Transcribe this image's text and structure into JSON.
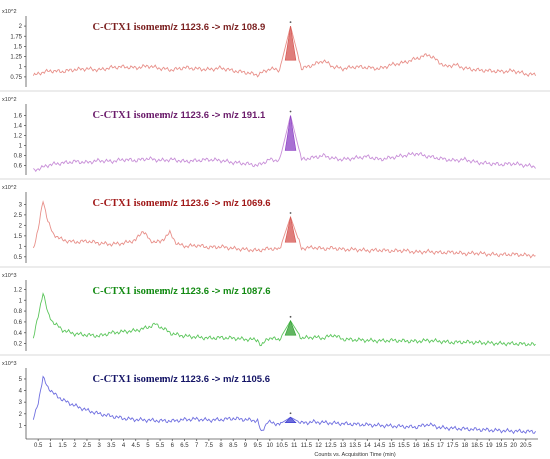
{
  "chart_data": {
    "type": "line",
    "xlabel": "Counts vs. Acquisition Time (min)",
    "x_ticks": [
      "0.5",
      "1",
      "1.5",
      "2",
      "2.5",
      "3",
      "3.5",
      "4",
      "4.5",
      "5",
      "5.5",
      "6",
      "6.5",
      "7",
      "7.5",
      "8",
      "8.5",
      "9",
      "9.5",
      "10",
      "10.5",
      "11",
      "11.5",
      "12",
      "12.5",
      "13",
      "13.5",
      "14",
      "14.5",
      "15",
      "15.5",
      "16",
      "16.5",
      "17",
      "17.5",
      "18",
      "18.5",
      "19",
      "19.5",
      "20",
      "20.5"
    ],
    "xlim": [
      0.0,
      21.0
    ],
    "peak_time": 10.85,
    "panels": [
      {
        "isomer_label": "C-CTX1 isomer:",
        "transition": "m/z 1123.6 -> m/z 108.9",
        "scale": "x10^2",
        "label_color": "#7a1f1f",
        "line_color": "#e8908a",
        "fill_color": "#d4524d",
        "y_ticks": [
          "0.75",
          "1",
          "1.25",
          "1.5",
          "1.75",
          "2"
        ],
        "ylim": [
          0.55,
          2.15
        ],
        "points": [
          [
            0.3,
            0.78
          ],
          [
            0.6,
            0.85
          ],
          [
            1.0,
            0.9
          ],
          [
            1.5,
            0.88
          ],
          [
            2.0,
            0.93
          ],
          [
            2.5,
            0.95
          ],
          [
            3.0,
            0.92
          ],
          [
            3.5,
            0.98
          ],
          [
            4.0,
            1.0
          ],
          [
            4.5,
            0.97
          ],
          [
            5.0,
            1.02
          ],
          [
            5.5,
            0.96
          ],
          [
            6.0,
            0.92
          ],
          [
            6.5,
            0.98
          ],
          [
            7.0,
            0.95
          ],
          [
            7.5,
            0.93
          ],
          [
            8.0,
            0.97
          ],
          [
            8.5,
            0.9
          ],
          [
            9.0,
            0.86
          ],
          [
            9.5,
            0.8
          ],
          [
            10.0,
            0.95
          ],
          [
            10.4,
            0.92
          ],
          [
            10.85,
            2.0
          ],
          [
            11.3,
            0.95
          ],
          [
            11.8,
            1.05
          ],
          [
            12.2,
            1.15
          ],
          [
            12.6,
            1.0
          ],
          [
            13.0,
            0.95
          ],
          [
            13.5,
            1.0
          ],
          [
            14.0,
            0.98
          ],
          [
            14.5,
            0.95
          ],
          [
            15.0,
            1.05
          ],
          [
            15.5,
            1.1
          ],
          [
            16.0,
            1.2
          ],
          [
            16.5,
            1.3
          ],
          [
            16.8,
            1.18
          ],
          [
            17.2,
            1.0
          ],
          [
            17.6,
            1.05
          ],
          [
            18.0,
            0.96
          ],
          [
            18.5,
            0.92
          ],
          [
            19.0,
            0.9
          ],
          [
            19.5,
            0.88
          ],
          [
            20.0,
            0.9
          ],
          [
            20.5,
            0.82
          ],
          [
            20.9,
            0.8
          ]
        ]
      },
      {
        "isomer_label": "C-CTX1 isomer:",
        "transition": "m/z 1123.6 -> m/z 191.1",
        "scale": "x10^2",
        "label_color": "#6a1b6a",
        "line_color": "#c88fd8",
        "fill_color": "#8b3fc4",
        "y_ticks": [
          "0.6",
          "0.8",
          "1",
          "1.2",
          "1.4",
          "1.6"
        ],
        "ylim": [
          0.45,
          1.75
        ],
        "points": [
          [
            0.3,
            0.5
          ],
          [
            0.6,
            0.55
          ],
          [
            1.0,
            0.62
          ],
          [
            1.5,
            0.65
          ],
          [
            2.0,
            0.68
          ],
          [
            2.5,
            0.66
          ],
          [
            3.0,
            0.7
          ],
          [
            3.5,
            0.68
          ],
          [
            4.0,
            0.72
          ],
          [
            4.5,
            0.7
          ],
          [
            5.0,
            0.74
          ],
          [
            5.5,
            0.7
          ],
          [
            6.0,
            0.72
          ],
          [
            6.5,
            0.68
          ],
          [
            7.0,
            0.7
          ],
          [
            7.5,
            0.72
          ],
          [
            8.0,
            0.7
          ],
          [
            8.5,
            0.66
          ],
          [
            9.0,
            0.64
          ],
          [
            9.5,
            0.6
          ],
          [
            10.0,
            0.72
          ],
          [
            10.4,
            0.7
          ],
          [
            10.85,
            1.6
          ],
          [
            11.3,
            0.72
          ],
          [
            11.8,
            0.76
          ],
          [
            12.2,
            0.8
          ],
          [
            12.6,
            0.74
          ],
          [
            13.0,
            0.72
          ],
          [
            13.5,
            0.75
          ],
          [
            14.0,
            0.78
          ],
          [
            14.5,
            0.72
          ],
          [
            15.0,
            0.76
          ],
          [
            15.5,
            0.8
          ],
          [
            16.0,
            0.84
          ],
          [
            16.5,
            0.78
          ],
          [
            17.0,
            0.74
          ],
          [
            17.5,
            0.7
          ],
          [
            18.0,
            0.72
          ],
          [
            18.5,
            0.66
          ],
          [
            19.0,
            0.64
          ],
          [
            19.5,
            0.62
          ],
          [
            20.0,
            0.64
          ],
          [
            20.5,
            0.6
          ],
          [
            20.9,
            0.58
          ]
        ]
      },
      {
        "isomer_label": "C-CTX1 isomer:",
        "transition": "m/z 1123.6 -> m/z 1069.6",
        "scale": "x10^2",
        "label_color": "#a01818",
        "line_color": "#e8908a",
        "fill_color": "#d4524d",
        "y_ticks": [
          "0.5",
          "1",
          "1.5",
          "2",
          "2.5",
          "3"
        ],
        "ylim": [
          0.3,
          3.4
        ],
        "points": [
          [
            0.3,
            0.9
          ],
          [
            0.5,
            1.8
          ],
          [
            0.7,
            3.2
          ],
          [
            0.9,
            2.2
          ],
          [
            1.1,
            1.6
          ],
          [
            1.5,
            1.3
          ],
          [
            2.0,
            1.2
          ],
          [
            2.5,
            1.25
          ],
          [
            3.0,
            1.15
          ],
          [
            3.5,
            1.1
          ],
          [
            4.0,
            1.15
          ],
          [
            4.5,
            1.3
          ],
          [
            4.8,
            1.75
          ],
          [
            5.1,
            1.25
          ],
          [
            5.5,
            1.2
          ],
          [
            5.9,
            1.65
          ],
          [
            6.2,
            1.1
          ],
          [
            6.6,
            1.0
          ],
          [
            7.0,
            1.05
          ],
          [
            7.5,
            0.95
          ],
          [
            8.0,
            0.98
          ],
          [
            8.5,
            0.9
          ],
          [
            9.0,
            0.85
          ],
          [
            9.5,
            0.8
          ],
          [
            10.0,
            0.9
          ],
          [
            10.4,
            0.85
          ],
          [
            10.85,
            2.4
          ],
          [
            11.3,
            0.9
          ],
          [
            11.8,
            0.95
          ],
          [
            12.2,
            0.88
          ],
          [
            12.6,
            0.92
          ],
          [
            13.0,
            0.85
          ],
          [
            13.5,
            0.85
          ],
          [
            14.0,
            0.8
          ],
          [
            14.5,
            0.82
          ],
          [
            15.0,
            0.78
          ],
          [
            15.5,
            0.8
          ],
          [
            16.0,
            0.72
          ],
          [
            16.5,
            0.75
          ],
          [
            17.0,
            0.7
          ],
          [
            17.5,
            0.72
          ],
          [
            18.0,
            0.65
          ],
          [
            18.5,
            0.68
          ],
          [
            19.0,
            0.62
          ],
          [
            19.5,
            0.6
          ],
          [
            20.0,
            0.62
          ],
          [
            20.5,
            0.58
          ],
          [
            20.9,
            0.55
          ]
        ]
      },
      {
        "isomer_label": "C-CTX1 isomer:",
        "transition": "m/z 1123.6 -> m/z 1087.6",
        "scale": "x10^3",
        "label_color": "#128a12",
        "line_color": "#5cc65c",
        "fill_color": "#2e9e2e",
        "y_ticks": [
          "0.2",
          "0.4",
          "0.6",
          "0.8",
          "1",
          "1.2"
        ],
        "ylim": [
          0.1,
          1.3
        ],
        "points": [
          [
            0.3,
            0.3
          ],
          [
            0.5,
            0.7
          ],
          [
            0.7,
            1.15
          ],
          [
            0.9,
            0.75
          ],
          [
            1.1,
            0.6
          ],
          [
            1.5,
            0.45
          ],
          [
            2.0,
            0.38
          ],
          [
            2.5,
            0.36
          ],
          [
            3.0,
            0.34
          ],
          [
            3.5,
            0.4
          ],
          [
            4.0,
            0.42
          ],
          [
            4.5,
            0.44
          ],
          [
            5.0,
            0.5
          ],
          [
            5.3,
            0.56
          ],
          [
            5.7,
            0.46
          ],
          [
            6.0,
            0.38
          ],
          [
            6.5,
            0.34
          ],
          [
            7.0,
            0.32
          ],
          [
            7.5,
            0.3
          ],
          [
            8.0,
            0.31
          ],
          [
            8.5,
            0.3
          ],
          [
            9.0,
            0.28
          ],
          [
            9.5,
            0.27
          ],
          [
            9.65,
            0.15
          ],
          [
            9.9,
            0.3
          ],
          [
            10.4,
            0.28
          ],
          [
            10.85,
            0.62
          ],
          [
            11.3,
            0.3
          ],
          [
            11.8,
            0.32
          ],
          [
            12.2,
            0.3
          ],
          [
            12.6,
            0.36
          ],
          [
            13.0,
            0.28
          ],
          [
            13.5,
            0.27
          ],
          [
            14.0,
            0.26
          ],
          [
            14.5,
            0.25
          ],
          [
            15.0,
            0.26
          ],
          [
            15.5,
            0.25
          ],
          [
            16.0,
            0.24
          ],
          [
            16.5,
            0.26
          ],
          [
            17.0,
            0.24
          ],
          [
            17.5,
            0.22
          ],
          [
            18.0,
            0.23
          ],
          [
            18.5,
            0.22
          ],
          [
            19.0,
            0.21
          ],
          [
            19.5,
            0.2
          ],
          [
            20.0,
            0.2
          ],
          [
            20.5,
            0.19
          ],
          [
            20.9,
            0.18
          ]
        ]
      },
      {
        "isomer_label": "C-CTX1 isomer:",
        "transition": "m/z 1123.6 -> m/z 1105.6",
        "scale": "x10^3",
        "label_color": "#141466",
        "line_color": "#6f6fe0",
        "fill_color": "#3b3bd0",
        "y_ticks": [
          "1",
          "2",
          "3",
          "4",
          "5"
        ],
        "ylim": [
          0.0,
          5.6
        ],
        "points": [
          [
            0.3,
            1.5
          ],
          [
            0.5,
            3.0
          ],
          [
            0.7,
            5.1
          ],
          [
            0.9,
            4.3
          ],
          [
            1.1,
            3.8
          ],
          [
            1.5,
            3.2
          ],
          [
            2.0,
            2.7
          ],
          [
            2.5,
            2.3
          ],
          [
            3.0,
            2.0
          ],
          [
            3.5,
            1.8
          ],
          [
            4.0,
            1.6
          ],
          [
            4.5,
            1.5
          ],
          [
            5.0,
            1.45
          ],
          [
            5.5,
            1.4
          ],
          [
            6.0,
            1.38
          ],
          [
            6.5,
            1.5
          ],
          [
            7.0,
            1.55
          ],
          [
            7.5,
            1.45
          ],
          [
            8.0,
            1.5
          ],
          [
            8.5,
            1.6
          ],
          [
            9.0,
            1.5
          ],
          [
            9.5,
            1.4
          ],
          [
            9.65,
            0.4
          ],
          [
            9.9,
            1.3
          ],
          [
            10.4,
            1.1
          ],
          [
            10.85,
            1.7
          ],
          [
            11.3,
            1.2
          ],
          [
            11.8,
            1.3
          ],
          [
            12.2,
            1.25
          ],
          [
            12.6,
            1.2
          ],
          [
            13.0,
            1.15
          ],
          [
            13.5,
            1.1
          ],
          [
            14.0,
            1.05
          ],
          [
            14.5,
            1.0
          ],
          [
            15.0,
            0.95
          ],
          [
            15.5,
            0.9
          ],
          [
            16.0,
            0.85
          ],
          [
            16.5,
            1.1
          ],
          [
            17.0,
            0.8
          ],
          [
            17.5,
            0.75
          ],
          [
            18.0,
            0.7
          ],
          [
            18.5,
            0.65
          ],
          [
            19.0,
            0.6
          ],
          [
            19.5,
            0.55
          ],
          [
            20.0,
            0.5
          ],
          [
            20.5,
            0.48
          ],
          [
            20.9,
            0.45
          ]
        ]
      }
    ]
  }
}
